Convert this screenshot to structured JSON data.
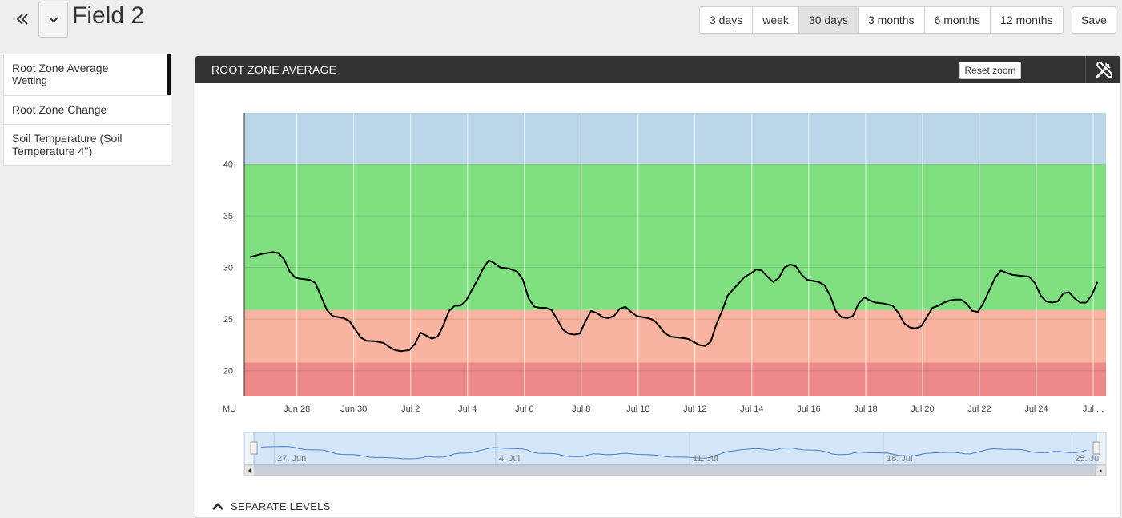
{
  "header": {
    "title": "Field 2",
    "ranges": [
      {
        "label": "3 days",
        "active": false
      },
      {
        "label": "week",
        "active": false
      },
      {
        "label": "30 days",
        "active": true
      },
      {
        "label": "3 months",
        "active": false
      },
      {
        "label": "6 months",
        "active": false
      },
      {
        "label": "12 months",
        "active": false
      }
    ],
    "save_label": "Save"
  },
  "sidebar": {
    "items": [
      {
        "label": "Root Zone Average",
        "sub": "Wetting",
        "active": true
      },
      {
        "label": "Root Zone Change",
        "sub": "",
        "active": false
      },
      {
        "label": "Soil Temperature (Soil Temperature 4'')",
        "sub": "",
        "active": false
      }
    ]
  },
  "panel": {
    "title": "ROOT ZONE AVERAGE",
    "reset_zoom_label": "Reset zoom",
    "tools_icon": "tools-icon",
    "separate_levels_label": "SEPARATE LEVELS"
  },
  "colors": {
    "header_bg": "#333333",
    "band_blue": "#bad6e8",
    "band_green": "#80df80",
    "band_salmon": "#f8b4a0",
    "band_red": "#ec8a8a",
    "line": "#000000",
    "navigator_fill": "#d4e6f8",
    "navigator_line": "#4a7fc8"
  },
  "chart_data": {
    "type": "line",
    "y_unit_label": "MU",
    "ylim": [
      17.5,
      45
    ],
    "yticks": [
      20,
      25,
      30,
      35,
      40
    ],
    "x_range_days": [
      0,
      30.3
    ],
    "x_ticks": [
      {
        "label": "Jun 28",
        "day": 1.85
      },
      {
        "label": "Jun 30",
        "day": 3.85
      },
      {
        "label": "Jul 2",
        "day": 5.85
      },
      {
        "label": "Jul 4",
        "day": 7.85
      },
      {
        "label": "Jul 6",
        "day": 9.85
      },
      {
        "label": "Jul 8",
        "day": 11.85
      },
      {
        "label": "Jul 10",
        "day": 13.85
      },
      {
        "label": "Jul 12",
        "day": 15.85
      },
      {
        "label": "Jul 14",
        "day": 17.85
      },
      {
        "label": "Jul 16",
        "day": 19.85
      },
      {
        "label": "Jul 18",
        "day": 21.85
      },
      {
        "label": "Jul 20",
        "day": 23.85
      },
      {
        "label": "Jul 22",
        "day": 25.85
      },
      {
        "label": "Jul 24",
        "day": 27.85
      },
      {
        "label": "Jul ...",
        "day": 29.85
      }
    ],
    "bands": [
      {
        "from": 17.5,
        "to": 20.8,
        "color": "#ec8a8a"
      },
      {
        "from": 20.8,
        "to": 25.9,
        "color": "#f8b4a0"
      },
      {
        "from": 25.9,
        "to": 40.0,
        "color": "#80df80"
      },
      {
        "from": 40.0,
        "to": 45.0,
        "color": "#bad6e8"
      }
    ],
    "series": [
      {
        "points": [
          [
            0.2,
            31.0
          ],
          [
            0.6,
            31.3
          ],
          [
            1.0,
            31.5
          ],
          [
            1.2,
            31.4
          ],
          [
            1.4,
            30.8
          ],
          [
            1.6,
            29.6
          ],
          [
            1.8,
            29.0
          ],
          [
            2.0,
            28.9
          ],
          [
            2.3,
            28.8
          ],
          [
            2.5,
            28.5
          ],
          [
            2.7,
            27.2
          ],
          [
            2.9,
            25.9
          ],
          [
            3.1,
            25.3
          ],
          [
            3.3,
            25.2
          ],
          [
            3.5,
            25.1
          ],
          [
            3.7,
            24.8
          ],
          [
            3.9,
            24.0
          ],
          [
            4.1,
            23.2
          ],
          [
            4.3,
            22.9
          ],
          [
            4.6,
            22.85
          ],
          [
            4.9,
            22.7
          ],
          [
            5.1,
            22.3
          ],
          [
            5.3,
            22.0
          ],
          [
            5.5,
            21.9
          ],
          [
            5.8,
            22.0
          ],
          [
            6.0,
            22.6
          ],
          [
            6.2,
            23.7
          ],
          [
            6.4,
            23.4
          ],
          [
            6.6,
            23.1
          ],
          [
            6.8,
            23.3
          ],
          [
            7.0,
            24.4
          ],
          [
            7.2,
            25.8
          ],
          [
            7.4,
            26.3
          ],
          [
            7.6,
            26.3
          ],
          [
            7.8,
            26.8
          ],
          [
            8.0,
            27.8
          ],
          [
            8.2,
            28.8
          ],
          [
            8.4,
            29.9
          ],
          [
            8.6,
            30.7
          ],
          [
            8.8,
            30.4
          ],
          [
            9.0,
            30.0
          ],
          [
            9.3,
            29.9
          ],
          [
            9.6,
            29.6
          ],
          [
            9.8,
            28.8
          ],
          [
            10.0,
            27.0
          ],
          [
            10.2,
            26.2
          ],
          [
            10.4,
            26.1
          ],
          [
            10.6,
            26.1
          ],
          [
            10.8,
            25.9
          ],
          [
            11.0,
            25.0
          ],
          [
            11.2,
            24.0
          ],
          [
            11.4,
            23.6
          ],
          [
            11.6,
            23.5
          ],
          [
            11.8,
            23.6
          ],
          [
            12.0,
            24.8
          ],
          [
            12.2,
            25.8
          ],
          [
            12.4,
            25.6
          ],
          [
            12.6,
            25.2
          ],
          [
            12.8,
            25.1
          ],
          [
            13.0,
            25.3
          ],
          [
            13.2,
            26.0
          ],
          [
            13.4,
            26.2
          ],
          [
            13.6,
            25.7
          ],
          [
            13.8,
            25.3
          ],
          [
            14.0,
            25.2
          ],
          [
            14.2,
            25.1
          ],
          [
            14.4,
            24.9
          ],
          [
            14.6,
            24.3
          ],
          [
            14.8,
            23.6
          ],
          [
            15.0,
            23.3
          ],
          [
            15.3,
            23.2
          ],
          [
            15.6,
            23.1
          ],
          [
            15.8,
            22.8
          ],
          [
            16.0,
            22.5
          ],
          [
            16.2,
            22.4
          ],
          [
            16.4,
            22.8
          ],
          [
            16.6,
            24.5
          ],
          [
            16.8,
            25.8
          ],
          [
            17.0,
            27.3
          ],
          [
            17.2,
            27.9
          ],
          [
            17.4,
            28.5
          ],
          [
            17.6,
            29.1
          ],
          [
            17.8,
            29.4
          ],
          [
            18.0,
            29.8
          ],
          [
            18.2,
            29.7
          ],
          [
            18.4,
            29.1
          ],
          [
            18.6,
            28.6
          ],
          [
            18.8,
            29.0
          ],
          [
            19.0,
            30.0
          ],
          [
            19.2,
            30.3
          ],
          [
            19.4,
            30.1
          ],
          [
            19.6,
            29.3
          ],
          [
            19.8,
            28.8
          ],
          [
            20.0,
            28.7
          ],
          [
            20.2,
            28.6
          ],
          [
            20.4,
            28.3
          ],
          [
            20.6,
            27.3
          ],
          [
            20.8,
            25.8
          ],
          [
            21.0,
            25.2
          ],
          [
            21.2,
            25.1
          ],
          [
            21.4,
            25.3
          ],
          [
            21.6,
            26.5
          ],
          [
            21.8,
            27.1
          ],
          [
            22.0,
            26.8
          ],
          [
            22.2,
            26.6
          ],
          [
            22.5,
            26.5
          ],
          [
            22.8,
            26.3
          ],
          [
            23.0,
            25.6
          ],
          [
            23.2,
            24.6
          ],
          [
            23.4,
            24.2
          ],
          [
            23.6,
            24.1
          ],
          [
            23.8,
            24.3
          ],
          [
            24.0,
            25.2
          ],
          [
            24.2,
            26.1
          ],
          [
            24.4,
            26.3
          ],
          [
            24.6,
            26.6
          ],
          [
            24.8,
            26.8
          ],
          [
            25.0,
            26.9
          ],
          [
            25.2,
            26.9
          ],
          [
            25.4,
            26.5
          ],
          [
            25.6,
            25.8
          ],
          [
            25.8,
            25.7
          ],
          [
            26.0,
            26.6
          ],
          [
            26.2,
            27.8
          ],
          [
            26.4,
            29.0
          ],
          [
            26.6,
            29.7
          ],
          [
            26.8,
            29.5
          ],
          [
            27.0,
            29.3
          ],
          [
            27.3,
            29.2
          ],
          [
            27.6,
            29.1
          ],
          [
            27.8,
            28.5
          ],
          [
            28.0,
            27.3
          ],
          [
            28.2,
            26.7
          ],
          [
            28.4,
            26.6
          ],
          [
            28.6,
            26.7
          ],
          [
            28.8,
            27.5
          ],
          [
            29.0,
            27.6
          ],
          [
            29.2,
            27.0
          ],
          [
            29.4,
            26.6
          ],
          [
            29.6,
            26.6
          ],
          [
            29.8,
            27.3
          ],
          [
            30.0,
            28.6
          ]
        ]
      }
    ],
    "navigator": {
      "labels": [
        "27. Jun",
        "4. Jul",
        "11. Jul",
        "18. Jul",
        "25. Jul"
      ]
    }
  }
}
